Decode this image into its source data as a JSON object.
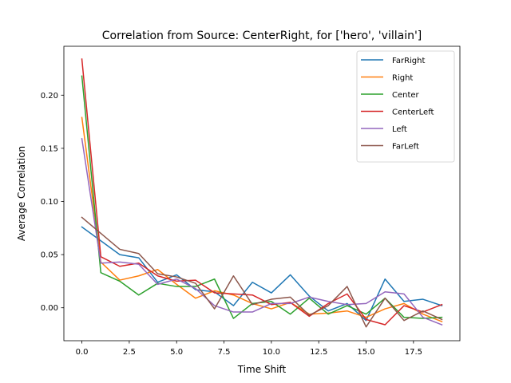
{
  "chart_data": {
    "type": "line",
    "title": "Correlation from Source: CenterRight, for ['hero', 'villain']",
    "xlabel": "Time Shift",
    "ylabel": "Average Correlation",
    "xlim": [
      -0.95,
      19.95
    ],
    "ylim": [
      -0.031,
      0.246
    ],
    "xticks": [
      0.0,
      2.5,
      5.0,
      7.5,
      10.0,
      12.5,
      15.0,
      17.5
    ],
    "xtick_labels": [
      "0.0",
      "2.5",
      "5.0",
      "7.5",
      "10.0",
      "12.5",
      "15.0",
      "17.5"
    ],
    "yticks": [
      0.0,
      0.05,
      0.1,
      0.15,
      0.2
    ],
    "ytick_labels": [
      "0.00",
      "0.05",
      "0.10",
      "0.15",
      "0.20"
    ],
    "grid": false,
    "legend": "top-right",
    "x": [
      0,
      1,
      2,
      3,
      4,
      5,
      6,
      7,
      8,
      9,
      10,
      11,
      12,
      13,
      14,
      15,
      16,
      17,
      18,
      19
    ],
    "series": [
      {
        "name": "FarRight",
        "color": "#1f77b4",
        "values": [
          0.076,
          0.063,
          0.05,
          0.047,
          0.024,
          0.031,
          0.017,
          0.015,
          0.002,
          0.024,
          0.014,
          0.031,
          0.011,
          -0.003,
          0.004,
          -0.012,
          0.027,
          0.006,
          0.008,
          0.002
        ]
      },
      {
        "name": "Right",
        "color": "#ff7f0e",
        "values": [
          0.179,
          0.043,
          0.026,
          0.03,
          0.036,
          0.022,
          0.009,
          0.016,
          0.012,
          0.004,
          -0.001,
          0.005,
          -0.006,
          -0.005,
          -0.003,
          -0.009,
          -0.001,
          0.004,
          -0.006,
          -0.013
        ]
      },
      {
        "name": "Center",
        "color": "#2ca02c",
        "values": [
          0.218,
          0.033,
          0.025,
          0.012,
          0.023,
          0.02,
          0.02,
          0.027,
          -0.01,
          0.004,
          0.006,
          -0.006,
          0.009,
          -0.006,
          0.002,
          -0.006,
          0.009,
          -0.009,
          -0.01,
          -0.009
        ]
      },
      {
        "name": "CenterLeft",
        "color": "#d62728",
        "values": [
          0.234,
          0.048,
          0.039,
          0.042,
          0.03,
          0.025,
          0.026,
          0.014,
          0.013,
          0.012,
          0.003,
          0.005,
          -0.008,
          0.004,
          0.013,
          -0.011,
          -0.016,
          0.002,
          -0.004,
          0.003
        ]
      },
      {
        "name": "Left",
        "color": "#9467bd",
        "values": [
          0.159,
          0.042,
          0.043,
          0.041,
          0.022,
          0.027,
          0.018,
          0.002,
          -0.004,
          -0.004,
          0.004,
          0.004,
          0.01,
          0.006,
          0.003,
          0.004,
          0.015,
          0.013,
          -0.009,
          -0.016
        ]
      },
      {
        "name": "FarLeft",
        "color": "#8c564b",
        "values": [
          0.085,
          0.07,
          0.055,
          0.051,
          0.032,
          0.029,
          0.023,
          -0.001,
          0.03,
          0.003,
          0.008,
          0.01,
          -0.007,
          0.002,
          0.02,
          -0.018,
          0.009,
          -0.012,
          -0.003,
          -0.011
        ]
      }
    ]
  }
}
